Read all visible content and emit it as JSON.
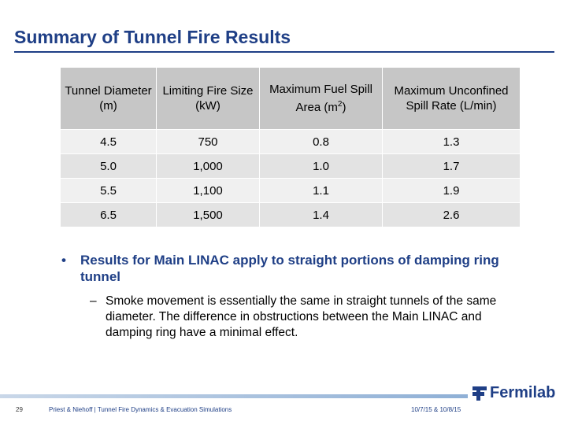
{
  "slide": {
    "title": "Summary of Tunnel Fire Results"
  },
  "table": {
    "headers": [
      "Tunnel Diameter (m)",
      "Limiting Fire Size (kW)",
      "Maximum Fuel Spill Area (m2)",
      "Maximum Unconfined Spill Rate (L/min)"
    ],
    "header_parts": {
      "area_pre": "Maximum Fuel Spill Area (m",
      "area_sup": "2",
      "area_post": ")"
    },
    "rows": [
      [
        "4.5",
        "750",
        "0.8",
        "1.3"
      ],
      [
        "5.0",
        "1,000",
        "1.0",
        "1.7"
      ],
      [
        "5.5",
        "1,100",
        "1.1",
        "1.9"
      ],
      [
        "6.5",
        "1,500",
        "1.4",
        "2.6"
      ]
    ]
  },
  "bullets": {
    "main_mark": "•",
    "main": "Results for Main LINAC apply to straight portions of damping ring tunnel",
    "sub_mark": "–",
    "sub": "Smoke movement is essentially the same in straight tunnels of the same diameter. The difference in obstructions between the Main LINAC and damping ring have a minimal effect."
  },
  "footer": {
    "page_number": "29",
    "credit": "Priest & Niehoff | Tunnel Fire Dynamics & Evacuation Simulations",
    "date": "10/7/15 & 10/8/15",
    "logo_text": "Fermilab",
    "logo_icon": "fermilab-logo-icon",
    "brand_color": "#1f3f86"
  }
}
